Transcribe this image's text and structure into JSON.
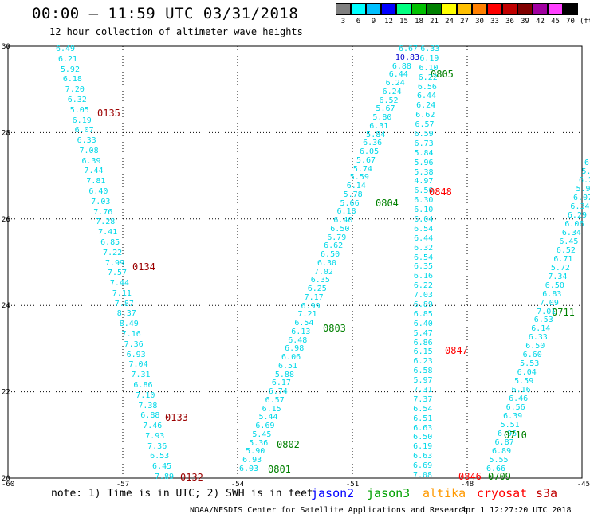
{
  "header": {
    "title": "00:00 – 11:59 UTC 03/31/2018",
    "subtitle": "12 hour collection of altimeter wave heights"
  },
  "color_scale": {
    "unit": "(ft)",
    "bins": [
      {
        "label": "3",
        "color": "#808080"
      },
      {
        "label": "6",
        "color": "#00ffff"
      },
      {
        "label": "9",
        "color": "#00c0ff"
      },
      {
        "label": "12",
        "color": "#0000ff"
      },
      {
        "label": "15",
        "color": "#00ff80"
      },
      {
        "label": "18",
        "color": "#00c000"
      },
      {
        "label": "21",
        "color": "#008000"
      },
      {
        "label": "24",
        "color": "#ffff00"
      },
      {
        "label": "27",
        "color": "#ffc000"
      },
      {
        "label": "30",
        "color": "#ff8000"
      },
      {
        "label": "33",
        "color": "#ff0000"
      },
      {
        "label": "36",
        "color": "#c00000"
      },
      {
        "label": "39",
        "color": "#800000"
      },
      {
        "label": "42",
        "color": "#a000a0"
      },
      {
        "label": "45",
        "color": "#ff40ff"
      },
      {
        "label": "70",
        "color": "#000000"
      }
    ]
  },
  "map": {
    "lon_ticks": [
      "-60",
      "-57",
      "-54",
      "-51",
      "-48",
      "-45"
    ],
    "lat_ticks": [
      "20",
      "22",
      "24",
      "26",
      "28",
      "30"
    ]
  },
  "legend": {
    "note": "note: 1) Time is in UTC; 2) SWH is in feet",
    "satellites": [
      {
        "name": "jason2",
        "color": "#0000ff"
      },
      {
        "name": "jason3",
        "color": "#00a000"
      },
      {
        "name": "altika",
        "color": "#ff9900"
      },
      {
        "name": "cryosat",
        "color": "#ff0000"
      },
      {
        "name": "s3a",
        "color": "#c00000"
      }
    ]
  },
  "footer": {
    "credit": "NOAA/NESDIS Center for Satellite Applications and Research",
    "timestamp": "Apr  1 12:27:20 UTC 2018"
  },
  "colors": {
    "swh_default": "#00d8e8",
    "swh_high": "#0000cc",
    "time_cryosat": "#ff0000",
    "time_s3a": "#9b0000",
    "time_jason3": "#008000",
    "grid": "#000000"
  },
  "tracks": [
    {
      "satellite": "s3a",
      "values": [
        "6.49",
        "6.21",
        "5.92",
        "6.18",
        "7.20",
        "6.32",
        "5.05",
        "6.19",
        "6.07",
        "6.33",
        "7.08",
        "6.39",
        "7.44",
        "7.81",
        "6.40",
        "7.03",
        "7.76",
        "7.28",
        "7.41",
        "6.85",
        "7.22",
        "7.99",
        "7.57",
        "7.44",
        "7.11",
        "7.87",
        "8.37",
        "8.49",
        "7.16",
        "7.36",
        "6.93",
        "7.04",
        "7.31",
        "6.86",
        "7.10",
        "7.38",
        "6.88",
        "7.46",
        "7.93",
        "7.36",
        "6.53",
        "6.45",
        "7.89"
      ],
      "times": [
        "0135",
        "0134",
        "0133",
        "0132"
      ]
    },
    {
      "satellite": "jason3",
      "values": [
        "6.03",
        "6.93",
        "5.90",
        "5.36",
        "5.45",
        "6.69",
        "5.44",
        "6.15",
        "6.57",
        "6.74",
        "6.17",
        "5.88",
        "6.51",
        "6.06",
        "6.98",
        "6.48",
        "6.13",
        "6.54",
        "7.21",
        "6.99",
        "7.17",
        "6.25",
        "6.35",
        "7.02",
        "6.30",
        "6.50",
        "6.62",
        "6.79",
        "6.50",
        "6.40",
        "6.18",
        "5.66",
        "5.78",
        "6.14",
        "5.59",
        "5.74",
        "5.67",
        "6.05",
        "6.36",
        "5.84",
        "6.31",
        "5.80",
        "5.67",
        "6.52",
        "6.24",
        "6.24",
        "6.44",
        "6.88",
        "10.83",
        "6.67"
      ],
      "times": [
        "0801",
        "0802",
        "0803",
        "0804",
        "0805"
      ]
    },
    {
      "satellite": "cryosat",
      "values": [
        "6.33",
        "6.19",
        "6.10",
        "6.22",
        "6.56",
        "6.44",
        "6.24",
        "6.62",
        "6.57",
        "6.59",
        "6.73",
        "5.84",
        "5.96",
        "5.38",
        "4.97",
        "6.50",
        "6.30",
        "6.10",
        "6.04",
        "6.54",
        "6.44",
        "6.32",
        "6.54",
        "6.35",
        "6.16",
        "6.22",
        "7.03",
        "6.89",
        "6.85",
        "6.40",
        "5.47",
        "6.86",
        "6.15",
        "6.23",
        "6.58",
        "5.97",
        "7.31",
        "7.37",
        "6.54",
        "6.51",
        "6.63",
        "6.50",
        "6.19",
        "6.63",
        "6.69",
        "7.08"
      ],
      "times": [
        "0848",
        "0847",
        "0846"
      ]
    },
    {
      "satellite": "jason3",
      "values": [
        "6.55",
        "5.75",
        "6.21",
        "5.96",
        "6.07",
        "6.34",
        "6.29",
        "6.06",
        "6.34",
        "6.45",
        "6.52",
        "6.71",
        "5.72",
        "7.34",
        "6.50",
        "6.83",
        "7.09",
        "7.01",
        "6.53",
        "6.14",
        "6.33",
        "6.50",
        "6.60",
        "5.53",
        "6.04",
        "5.59",
        "6.16",
        "6.46",
        "6.56",
        "6.39",
        "5.51",
        "6.96",
        "6.87",
        "6.89",
        "5.55",
        "6.66"
      ],
      "times": [
        "0711",
        "0710",
        "0709"
      ]
    }
  ]
}
